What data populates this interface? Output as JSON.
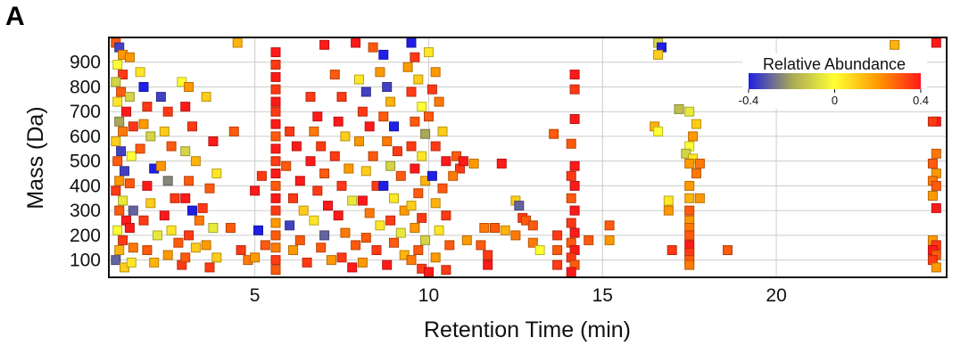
{
  "panel_label": "A",
  "chart_data": {
    "type": "scatter",
    "title": "",
    "xlabel": "Retention Time (min)",
    "ylabel": "Mass (Da)",
    "xlim": [
      0.8,
      24.9
    ],
    "ylim": [
      30,
      1000
    ],
    "xticks": [
      5,
      10,
      15,
      20
    ],
    "yticks": [
      100,
      200,
      300,
      400,
      500,
      600,
      700,
      800,
      900
    ],
    "grid": true,
    "legend": {
      "title": "Relative Abundance",
      "placement": "top-right",
      "type": "colorbar",
      "range": [
        -0.4,
        0.4
      ],
      "ticks": [
        "-0.4",
        "0",
        "0.4"
      ],
      "colors": [
        "#1f1fe6",
        "#a8a858",
        "#ffff33",
        "#ff9900",
        "#ff1a1a"
      ]
    },
    "marker": "square",
    "points": [
      [
        1.0,
        985,
        0.3
      ],
      [
        1.1,
        960,
        -0.35
      ],
      [
        1.2,
        930,
        0.2
      ],
      [
        1.05,
        890,
        0.0
      ],
      [
        1.2,
        850,
        0.35
      ],
      [
        1.0,
        820,
        -0.1
      ],
      [
        1.15,
        780,
        0.3
      ],
      [
        1.05,
        740,
        0.05
      ],
      [
        1.3,
        700,
        0.4
      ],
      [
        1.1,
        660,
        -0.2
      ],
      [
        1.2,
        620,
        0.25
      ],
      [
        1.0,
        580,
        0.1
      ],
      [
        1.15,
        540,
        -0.35
      ],
      [
        1.05,
        500,
        0.3
      ],
      [
        1.25,
        460,
        -0.35
      ],
      [
        1.1,
        420,
        0.2
      ],
      [
        1.0,
        380,
        0.35
      ],
      [
        1.2,
        340,
        -0.05
      ],
      [
        1.1,
        300,
        0.3
      ],
      [
        1.3,
        260,
        0.4
      ],
      [
        1.05,
        220,
        0.0
      ],
      [
        1.2,
        180,
        0.35
      ],
      [
        1.1,
        140,
        0.15
      ],
      [
        1.0,
        100,
        -0.3
      ],
      [
        1.25,
        70,
        0.1
      ],
      [
        1.4,
        920,
        0.2
      ],
      [
        1.4,
        760,
        -0.1
      ],
      [
        1.5,
        640,
        0.35
      ],
      [
        1.45,
        520,
        0.0
      ],
      [
        1.4,
        410,
        0.3
      ],
      [
        1.5,
        300,
        -0.3
      ],
      [
        1.4,
        230,
        0.4
      ],
      [
        1.5,
        150,
        0.25
      ],
      [
        1.45,
        90,
        0.05
      ],
      [
        1.7,
        860,
        0.05
      ],
      [
        1.8,
        800,
        -0.4
      ],
      [
        1.9,
        720,
        0.35
      ],
      [
        1.8,
        650,
        0.2
      ],
      [
        2.0,
        600,
        -0.1
      ],
      [
        1.7,
        550,
        0.3
      ],
      [
        2.1,
        470,
        -0.4
      ],
      [
        1.9,
        400,
        0.4
      ],
      [
        2.0,
        330,
        0.1
      ],
      [
        1.8,
        260,
        0.35
      ],
      [
        2.2,
        200,
        -0.05
      ],
      [
        1.9,
        140,
        0.3
      ],
      [
        2.1,
        90,
        0.15
      ],
      [
        2.3,
        760,
        -0.35
      ],
      [
        2.5,
        700,
        0.35
      ],
      [
        2.4,
        620,
        0.1
      ],
      [
        2.6,
        560,
        0.3
      ],
      [
        2.3,
        480,
        0.2
      ],
      [
        2.5,
        420,
        -0.25
      ],
      [
        2.7,
        350,
        0.35
      ],
      [
        2.4,
        280,
        0.4
      ],
      [
        2.6,
        220,
        0.05
      ],
      [
        2.8,
        170,
        0.3
      ],
      [
        2.5,
        120,
        0.2
      ],
      [
        2.9,
        80,
        0.35
      ],
      [
        2.9,
        820,
        0.0
      ],
      [
        3.1,
        800,
        0.2
      ],
      [
        3.0,
        720,
        0.4
      ],
      [
        3.2,
        640,
        0.35
      ],
      [
        3.0,
        540,
        -0.1
      ],
      [
        3.3,
        500,
        0.15
      ],
      [
        3.1,
        420,
        0.3
      ],
      [
        3.0,
        350,
        0.4
      ],
      [
        3.2,
        300,
        -0.4
      ],
      [
        3.4,
        260,
        0.25
      ],
      [
        3.1,
        200,
        0.35
      ],
      [
        3.3,
        150,
        0.1
      ],
      [
        3.0,
        110,
        0.3
      ],
      [
        3.6,
        760,
        0.1
      ],
      [
        3.8,
        580,
        0.4
      ],
      [
        3.9,
        450,
        0.05
      ],
      [
        3.7,
        390,
        0.3
      ],
      [
        3.5,
        310,
        0.35
      ],
      [
        3.8,
        230,
        -0.05
      ],
      [
        3.6,
        160,
        0.2
      ],
      [
        3.9,
        110,
        0.1
      ],
      [
        3.7,
        70,
        0.35
      ],
      [
        4.5,
        980,
        0.15
      ],
      [
        4.3,
        230,
        0.3
      ],
      [
        4.6,
        140,
        0.35
      ],
      [
        4.8,
        100,
        0.25
      ],
      [
        4.4,
        620,
        0.3
      ],
      [
        5.0,
        380,
        0.4
      ],
      [
        5.2,
        440,
        0.35
      ],
      [
        5.1,
        220,
        -0.4
      ],
      [
        5.3,
        160,
        0.3
      ],
      [
        5.0,
        110,
        0.2
      ],
      [
        5.6,
        940,
        0.4
      ],
      [
        5.6,
        890,
        0.35
      ],
      [
        5.6,
        840,
        0.4
      ],
      [
        5.6,
        790,
        0.35
      ],
      [
        5.6,
        740,
        0.4
      ],
      [
        5.6,
        700,
        0.35
      ],
      [
        5.6,
        650,
        0.4
      ],
      [
        5.6,
        600,
        0.3
      ],
      [
        5.6,
        550,
        0.4
      ],
      [
        5.6,
        500,
        0.35
      ],
      [
        5.6,
        450,
        0.4
      ],
      [
        5.6,
        400,
        0.3
      ],
      [
        5.6,
        350,
        0.4
      ],
      [
        5.6,
        300,
        0.35
      ],
      [
        5.6,
        250,
        0.2
      ],
      [
        5.6,
        200,
        0.3
      ],
      [
        5.6,
        150,
        0.25
      ],
      [
        5.6,
        100,
        0.35
      ],
      [
        5.6,
        60,
        0.3
      ],
      [
        6.0,
        620,
        0.35
      ],
      [
        6.2,
        560,
        0.4
      ],
      [
        5.9,
        480,
        0.3
      ],
      [
        6.3,
        420,
        0.4
      ],
      [
        6.1,
        350,
        0.35
      ],
      [
        6.4,
        300,
        0.1
      ],
      [
        6.0,
        240,
        -0.35
      ],
      [
        6.3,
        180,
        0.3
      ],
      [
        6.1,
        140,
        0.2
      ],
      [
        6.5,
        90,
        0.35
      ],
      [
        6.6,
        760,
        0.35
      ],
      [
        6.8,
        680,
        0.4
      ],
      [
        6.7,
        620,
        0.25
      ],
      [
        6.9,
        560,
        0.35
      ],
      [
        6.6,
        500,
        0.4
      ],
      [
        7.0,
        450,
        0.3
      ],
      [
        6.8,
        380,
        0.35
      ],
      [
        7.1,
        320,
        0.4
      ],
      [
        6.7,
        260,
        0.05
      ],
      [
        7.0,
        200,
        -0.3
      ],
      [
        6.9,
        150,
        0.3
      ],
      [
        7.2,
        100,
        0.2
      ],
      [
        7.0,
        970,
        0.4
      ],
      [
        7.3,
        850,
        0.3
      ],
      [
        7.5,
        760,
        0.35
      ],
      [
        7.4,
        660,
        0.4
      ],
      [
        7.6,
        600,
        0.1
      ],
      [
        7.3,
        520,
        0.35
      ],
      [
        7.7,
        470,
        0.2
      ],
      [
        7.5,
        400,
        0.35
      ],
      [
        7.8,
        340,
        -0.05
      ],
      [
        7.4,
        280,
        0.4
      ],
      [
        7.6,
        210,
        0.25
      ],
      [
        7.9,
        160,
        0.3
      ],
      [
        7.5,
        110,
        0.35
      ],
      [
        7.8,
        70,
        0.4
      ],
      [
        7.9,
        980,
        0.4
      ],
      [
        8.0,
        830,
        0.05
      ],
      [
        8.2,
        780,
        -0.35
      ],
      [
        8.1,
        700,
        0.35
      ],
      [
        8.3,
        640,
        0.4
      ],
      [
        8.0,
        580,
        0.2
      ],
      [
        8.4,
        520,
        0.3
      ],
      [
        8.2,
        460,
        0.1
      ],
      [
        8.5,
        400,
        0.35
      ],
      [
        8.1,
        340,
        0.4
      ],
      [
        8.3,
        290,
        0.25
      ],
      [
        8.6,
        240,
        0.05
      ],
      [
        8.2,
        190,
        0.3
      ],
      [
        8.5,
        140,
        0.35
      ],
      [
        8.1,
        90,
        0.2
      ],
      [
        8.4,
        960,
        0.3
      ],
      [
        8.7,
        930,
        -0.4
      ],
      [
        8.6,
        860,
        0.2
      ],
      [
        8.8,
        800,
        -0.35
      ],
      [
        8.9,
        740,
        0.15
      ],
      [
        8.7,
        680,
        0.3
      ],
      [
        9.0,
        640,
        -0.4
      ],
      [
        8.8,
        580,
        0.25
      ],
      [
        9.1,
        540,
        0.35
      ],
      [
        8.9,
        480,
        -0.1
      ],
      [
        9.2,
        440,
        0.3
      ],
      [
        8.7,
        400,
        -0.4
      ],
      [
        9.0,
        350,
        0.05
      ],
      [
        9.3,
        300,
        0.2
      ],
      [
        8.9,
        260,
        0.35
      ],
      [
        9.2,
        210,
        -0.05
      ],
      [
        9.0,
        170,
        0.3
      ],
      [
        9.3,
        120,
        0.15
      ],
      [
        8.8,
        80,
        0.4
      ],
      [
        9.5,
        990,
        -0.4
      ],
      [
        9.6,
        920,
        0.35
      ],
      [
        9.4,
        880,
        0.2
      ],
      [
        9.7,
        830,
        0.1
      ],
      [
        9.5,
        780,
        0.35
      ],
      [
        9.8,
        720,
        0.0
      ],
      [
        9.6,
        660,
        0.3
      ],
      [
        9.9,
        610,
        -0.2
      ],
      [
        9.5,
        560,
        0.35
      ],
      [
        9.8,
        520,
        0.05
      ],
      [
        9.6,
        470,
        0.4
      ],
      [
        9.9,
        420,
        0.15
      ],
      [
        9.7,
        370,
        0.3
      ],
      [
        9.5,
        320,
        0.1
      ],
      [
        9.8,
        270,
        0.35
      ],
      [
        9.6,
        230,
        0.2
      ],
      [
        9.9,
        180,
        -0.1
      ],
      [
        9.7,
        140,
        0.3
      ],
      [
        9.5,
        100,
        0.25
      ],
      [
        9.8,
        65,
        0.35
      ],
      [
        10.0,
        940,
        0.05
      ],
      [
        10.2,
        860,
        0.2
      ],
      [
        10.1,
        790,
        0.35
      ],
      [
        10.3,
        740,
        0.25
      ],
      [
        10.0,
        680,
        0.3
      ],
      [
        10.4,
        620,
        0.1
      ],
      [
        10.2,
        560,
        0.35
      ],
      [
        10.5,
        500,
        0.4
      ],
      [
        10.1,
        440,
        -0.4
      ],
      [
        10.4,
        390,
        0.3
      ],
      [
        10.2,
        330,
        0.15
      ],
      [
        10.5,
        280,
        0.35
      ],
      [
        10.3,
        220,
        0.05
      ],
      [
        10.6,
        160,
        0.3
      ],
      [
        10.2,
        110,
        0.2
      ],
      [
        10.5,
        60,
        0.35
      ],
      [
        10.0,
        50,
        0.4
      ],
      [
        10.8,
        520,
        0.3
      ],
      [
        10.9,
        470,
        0.35
      ],
      [
        11.0,
        500,
        0.4
      ],
      [
        10.7,
        440,
        0.25
      ],
      [
        11.1,
        180,
        0.2
      ],
      [
        11.3,
        490,
        0.2
      ],
      [
        11.6,
        230,
        0.25
      ],
      [
        11.5,
        160,
        0.3
      ],
      [
        11.7,
        120,
        0.35
      ],
      [
        11.7,
        80,
        0.4
      ],
      [
        11.9,
        230,
        0.3
      ],
      [
        12.1,
        490,
        0.4
      ],
      [
        12.2,
        220,
        0.15
      ],
      [
        12.5,
        340,
        0.1
      ],
      [
        12.6,
        320,
        -0.3
      ],
      [
        12.7,
        270,
        0.35
      ],
      [
        12.5,
        200,
        0.25
      ],
      [
        12.8,
        260,
        0.3
      ],
      [
        13.0,
        240,
        0.3
      ],
      [
        13.0,
        170,
        0.25
      ],
      [
        13.2,
        140,
        0.0
      ],
      [
        13.7,
        200,
        0.35
      ],
      [
        13.7,
        140,
        0.3
      ],
      [
        13.7,
        80,
        0.35
      ],
      [
        13.6,
        610,
        0.3
      ],
      [
        14.2,
        850,
        0.4
      ],
      [
        14.2,
        790,
        0.35
      ],
      [
        14.2,
        670,
        0.4
      ],
      [
        14.1,
        570,
        0.3
      ],
      [
        14.2,
        480,
        0.4
      ],
      [
        14.1,
        440,
        0.35
      ],
      [
        14.2,
        400,
        0.4
      ],
      [
        14.1,
        350,
        0.3
      ],
      [
        14.2,
        300,
        0.4
      ],
      [
        14.1,
        250,
        0.35
      ],
      [
        14.2,
        210,
        0.4
      ],
      [
        14.1,
        170,
        0.3
      ],
      [
        14.2,
        140,
        0.4
      ],
      [
        14.1,
        110,
        0.35
      ],
      [
        14.2,
        80,
        0.3
      ],
      [
        14.1,
        50,
        0.4
      ],
      [
        14.6,
        180,
        0.3
      ],
      [
        15.2,
        240,
        0.3
      ],
      [
        15.2,
        180,
        0.2
      ],
      [
        16.6,
        980,
        -0.1
      ],
      [
        16.7,
        960,
        -0.4
      ],
      [
        16.6,
        930,
        0.1
      ],
      [
        16.5,
        640,
        0.15
      ],
      [
        16.6,
        620,
        0.0
      ],
      [
        16.9,
        340,
        0.05
      ],
      [
        16.9,
        300,
        0.2
      ],
      [
        17.2,
        710,
        -0.15
      ],
      [
        17.5,
        700,
        -0.05
      ],
      [
        17.7,
        650,
        0.1
      ],
      [
        17.6,
        600,
        0.2
      ],
      [
        17.5,
        560,
        0.0
      ],
      [
        17.4,
        530,
        -0.1
      ],
      [
        17.6,
        510,
        0.05
      ],
      [
        17.5,
        490,
        0.2
      ],
      [
        17.7,
        450,
        0.25
      ],
      [
        17.5,
        400,
        0.2
      ],
      [
        17.5,
        350,
        0.15
      ],
      [
        17.8,
        350,
        0.2
      ],
      [
        17.5,
        300,
        0.3
      ],
      [
        17.5,
        260,
        0.2
      ],
      [
        17.5,
        230,
        0.25
      ],
      [
        17.5,
        200,
        0.3
      ],
      [
        17.5,
        160,
        0.4
      ],
      [
        17.5,
        130,
        0.35
      ],
      [
        17.5,
        100,
        0.3
      ],
      [
        17.5,
        80,
        0.25
      ],
      [
        17.0,
        140,
        0.35
      ],
      [
        17.8,
        490,
        0.25
      ],
      [
        18.6,
        140,
        0.3
      ],
      [
        23.4,
        970,
        0.15
      ],
      [
        24.6,
        990,
        0.4
      ],
      [
        24.6,
        660,
        0.4
      ],
      [
        24.5,
        660,
        0.35
      ],
      [
        24.6,
        530,
        0.25
      ],
      [
        24.5,
        490,
        0.3
      ],
      [
        24.6,
        450,
        0.2
      ],
      [
        24.5,
        420,
        0.25
      ],
      [
        24.6,
        400,
        0.3
      ],
      [
        24.5,
        360,
        0.2
      ],
      [
        24.6,
        310,
        0.4
      ],
      [
        24.5,
        180,
        0.2
      ],
      [
        24.6,
        160,
        0.35
      ],
      [
        24.5,
        140,
        0.4
      ],
      [
        24.6,
        120,
        0.3
      ],
      [
        24.5,
        100,
        0.35
      ],
      [
        24.6,
        70,
        0.2
      ]
    ]
  }
}
